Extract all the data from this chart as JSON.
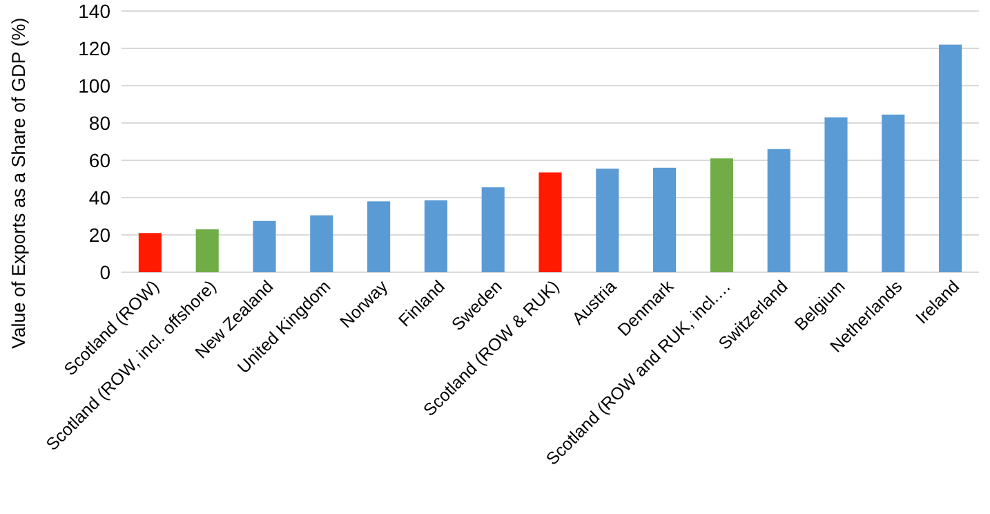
{
  "chart_data": {
    "type": "bar",
    "ylabel": "Value of Exports as a Share of GDP (%)",
    "categories": [
      "Scotland (ROW)",
      "Scotland (ROW, incl. offshore)",
      "New Zealand",
      "United Kingdom",
      "Norway",
      "Finland",
      "Sweden",
      "Scotland (ROW & RUK)",
      "Austria",
      "Denmark",
      "Scotland (ROW and RUK, incl.…",
      "Switzerland",
      "Belgium",
      "Netherlands",
      "Ireland"
    ],
    "values": [
      21,
      23,
      27.5,
      30.5,
      38,
      38.5,
      45.5,
      53.5,
      55.5,
      56,
      61,
      66,
      83,
      84.5,
      122
    ],
    "colors": [
      "#ff1a00",
      "#70ad47",
      "#5b9bd5",
      "#5b9bd5",
      "#5b9bd5",
      "#5b9bd5",
      "#5b9bd5",
      "#ff1a00",
      "#5b9bd5",
      "#5b9bd5",
      "#70ad47",
      "#5b9bd5",
      "#5b9bd5",
      "#5b9bd5",
      "#5b9bd5"
    ],
    "ylim": [
      0,
      140
    ],
    "yticks": [
      0,
      20,
      40,
      60,
      80,
      100,
      120,
      140
    ],
    "grid": "y"
  }
}
